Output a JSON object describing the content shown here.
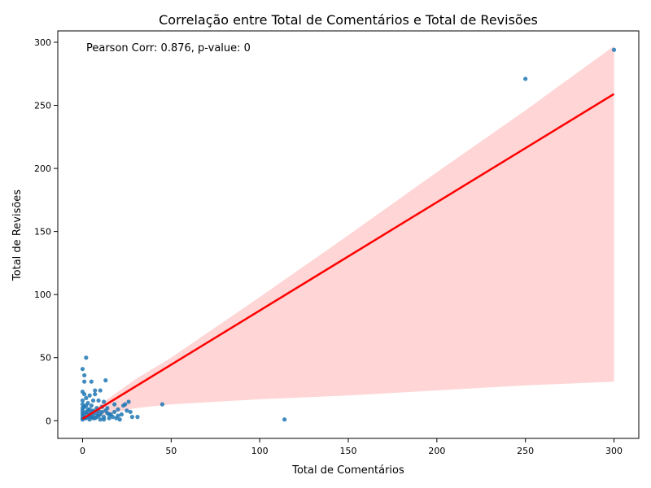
{
  "chart_data": {
    "type": "scatter",
    "title": "Correlação entre Total de Comentários e Total de Revisões",
    "xlabel": "Total de Comentários",
    "ylabel": "Total de Revisões",
    "annotation": "Pearson Corr: 0.876, p-value: 0",
    "xlim": [
      -14,
      314
    ],
    "ylim": [
      -14,
      309
    ],
    "xticks": [
      0,
      50,
      100,
      150,
      200,
      250,
      300
    ],
    "yticks": [
      0,
      50,
      100,
      150,
      200,
      250,
      300
    ],
    "grid": false,
    "colors": {
      "points": "#1f77b4",
      "regression": "#ff0000",
      "ci_band": "#ffb3b3"
    },
    "regression_line": {
      "x": [
        0,
        300
      ],
      "y": [
        1.5,
        259
      ]
    },
    "confidence_band": {
      "x": [
        0,
        10,
        30,
        50,
        100,
        150,
        200,
        250,
        300
      ],
      "upper": [
        3,
        13,
        33,
        50,
        98,
        147,
        197,
        246,
        297
      ],
      "lower": [
        0,
        4,
        10,
        13,
        17,
        20,
        24,
        28,
        31
      ]
    },
    "points": [
      [
        300,
        294
      ],
      [
        250,
        271
      ],
      [
        114,
        1
      ],
      [
        45,
        13
      ],
      [
        31,
        3
      ],
      [
        28,
        3
      ],
      [
        27,
        7
      ],
      [
        26,
        15
      ],
      [
        25,
        8
      ],
      [
        24,
        13
      ],
      [
        23,
        12
      ],
      [
        22,
        5
      ],
      [
        20,
        9
      ],
      [
        19,
        2
      ],
      [
        18,
        13
      ],
      [
        17,
        3
      ],
      [
        16,
        5
      ],
      [
        15,
        2
      ],
      [
        14,
        6
      ],
      [
        13,
        32
      ],
      [
        13,
        8
      ],
      [
        12,
        15
      ],
      [
        12,
        3
      ],
      [
        11,
        7
      ],
      [
        10,
        24
      ],
      [
        10,
        5
      ],
      [
        10,
        1
      ],
      [
        9,
        16
      ],
      [
        9,
        4
      ],
      [
        8,
        10
      ],
      [
        7,
        24
      ],
      [
        7,
        21
      ],
      [
        7,
        2
      ],
      [
        6,
        16
      ],
      [
        6,
        8
      ],
      [
        5,
        31
      ],
      [
        5,
        12
      ],
      [
        5,
        3
      ],
      [
        4,
        20
      ],
      [
        4,
        9
      ],
      [
        4,
        1
      ],
      [
        3,
        14
      ],
      [
        3,
        6
      ],
      [
        2,
        50
      ],
      [
        2,
        18
      ],
      [
        2,
        7
      ],
      [
        1,
        36
      ],
      [
        1,
        31
      ],
      [
        1,
        21
      ],
      [
        1,
        11
      ],
      [
        1,
        5
      ],
      [
        1,
        2
      ],
      [
        0,
        41
      ],
      [
        0,
        23
      ],
      [
        0,
        16
      ],
      [
        0,
        13
      ],
      [
        0,
        10
      ],
      [
        0,
        8
      ],
      [
        0,
        6
      ],
      [
        0,
        4
      ],
      [
        0,
        2
      ],
      [
        0,
        1
      ],
      [
        3,
        3
      ],
      [
        2,
        2
      ],
      [
        6,
        2
      ],
      [
        8,
        3
      ],
      [
        12,
        1
      ],
      [
        15,
        5
      ],
      [
        20,
        4
      ],
      [
        21,
        1
      ],
      [
        18,
        7
      ],
      [
        14,
        10
      ],
      [
        9,
        8
      ],
      [
        11,
        11
      ],
      [
        3,
        9
      ],
      [
        2,
        12
      ],
      [
        5,
        7
      ],
      [
        6,
        5
      ],
      [
        8,
        6
      ],
      [
        4,
        4
      ]
    ]
  }
}
